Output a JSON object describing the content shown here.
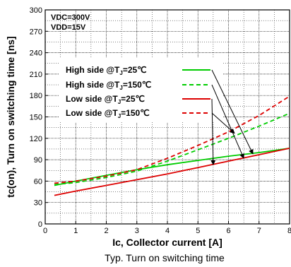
{
  "chart_data": {
    "type": "line",
    "xlabel": "Ic, Collector current [A]",
    "ylabel": "tc(on), Turn on switching time [ns]",
    "caption": "Typ. Turn on switching time",
    "xlim": [
      0,
      8
    ],
    "ylim": [
      0,
      300
    ],
    "xticks": [
      "0",
      "1",
      "2",
      "3",
      "4",
      "5",
      "6",
      "7",
      "8"
    ],
    "yticks": [
      "0",
      "30",
      "60",
      "90",
      "120",
      "150",
      "180",
      "210",
      "240",
      "270",
      "300"
    ],
    "grid": true,
    "conditions": {
      "vdc": "V<sub>DC</sub>=300V",
      "vdd": "V<sub>DD</sub>=15V",
      "vdc_text": "VDC=300V",
      "vdd_text": "VDD=15V"
    },
    "legend_position": "top-left",
    "series": [
      {
        "name": "High side @TJ=25℃",
        "name_main": "High side @T",
        "name_sub": "J",
        "name_tail": "=25℃",
        "color": "#00cc00",
        "dash": false,
        "x": [
          0.3,
          1,
          2,
          3,
          4,
          5,
          6,
          7,
          8
        ],
        "y": [
          54,
          60,
          68,
          76,
          83,
          89,
          95,
          100,
          106
        ]
      },
      {
        "name": "High side @TJ=150℃",
        "name_main": "High side @T",
        "name_sub": "J",
        "name_tail": "=150℃",
        "color": "#00cc00",
        "dash": true,
        "x": [
          0.3,
          1,
          2,
          3,
          4,
          5,
          6,
          7,
          8
        ],
        "y": [
          55,
          58,
          65,
          74,
          88,
          104,
          120,
          137,
          155
        ]
      },
      {
        "name": "Low side @TJ=25℃",
        "name_main": "Low side @T",
        "name_sub": "J",
        "name_tail": "=25℃",
        "color": "#dd0000",
        "dash": false,
        "x": [
          0.3,
          1,
          2,
          3,
          4,
          5,
          6,
          7,
          8
        ],
        "y": [
          40,
          46,
          54,
          62,
          70,
          79,
          88,
          97,
          106
        ]
      },
      {
        "name": "Low side @TJ=150℃",
        "name_main": "Low side @T",
        "name_sub": "J",
        "name_tail": "=150℃",
        "color": "#dd0000",
        "dash": true,
        "x": [
          0.3,
          1,
          2,
          3,
          4,
          5,
          6,
          7,
          8
        ],
        "y": [
          57,
          60,
          67,
          76,
          92,
          110,
          129,
          152,
          179
        ]
      }
    ],
    "arrow_targets": [
      {
        "x": 6.8,
        "y": 98
      },
      {
        "x": 6.5,
        "y": 92
      },
      {
        "x": 5.5,
        "y": 83
      },
      {
        "x": 6.2,
        "y": 127
      }
    ]
  }
}
